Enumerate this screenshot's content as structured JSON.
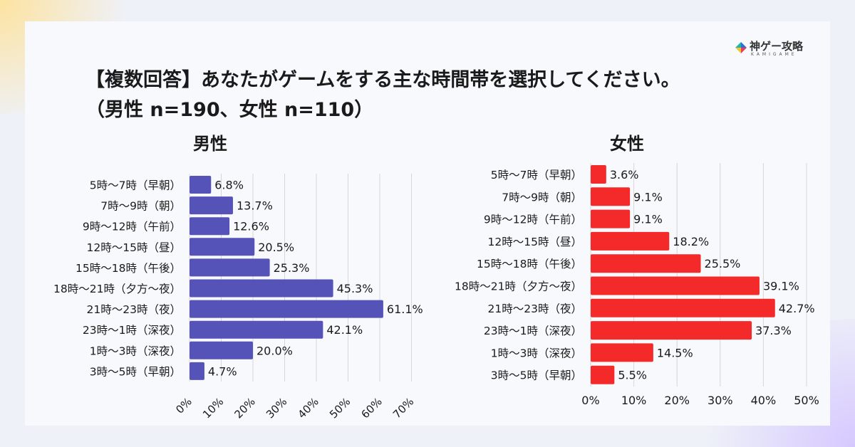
{
  "logo": {
    "text": "神ゲー攻略",
    "sub": "KAMIGAME"
  },
  "title": {
    "line1": "【複数回答】あなたがゲームをする主な時間帯を選択してください。",
    "line2": "（男性 n=190、女性 n=110）"
  },
  "chart_data": [
    {
      "type": "bar",
      "orientation": "horizontal",
      "title": "男性",
      "color": "#5553b8",
      "categories": [
        "5時〜7時（早朝）",
        "7時〜9時（朝）",
        "9時〜12時（午前）",
        "12時〜15時（昼）",
        "15時〜18時（午後）",
        "18時〜21時（夕方〜夜）",
        "21時〜23時（夜）",
        "23時〜1時（深夜）",
        "1時〜3時（深夜）",
        "3時〜5時（早朝）"
      ],
      "values": [
        6.8,
        13.7,
        12.6,
        20.5,
        25.3,
        45.3,
        61.1,
        42.1,
        20.0,
        4.7
      ],
      "labels": [
        "6.8%",
        "13.7%",
        "12.6%",
        "20.5%",
        "25.3%",
        "45.3%",
        "61.1%",
        "42.1%",
        "20.0%",
        "4.7%"
      ],
      "xlim": [
        0,
        70
      ],
      "ticks": [
        "0%",
        "10%",
        "20%",
        "30%",
        "40%",
        "50%",
        "60%",
        "70%"
      ],
      "tick_rotation": "rotated",
      "grid": true
    },
    {
      "type": "bar",
      "orientation": "horizontal",
      "title": "女性",
      "color": "#f42a2a",
      "categories": [
        "5時〜7時（早朝）",
        "7時〜9時（朝）",
        "9時〜12時（午前）",
        "12時〜15時（昼）",
        "15時〜18時（午後）",
        "18時〜21時（夕方〜夜）",
        "21時〜23時（夜）",
        "23時〜1時（深夜）",
        "1時〜3時（深夜）",
        "3時〜5時（早朝）"
      ],
      "values": [
        3.6,
        9.1,
        9.1,
        18.2,
        25.5,
        39.1,
        42.7,
        37.3,
        14.5,
        5.5
      ],
      "labels": [
        "3.6%",
        "9.1%",
        "9.1%",
        "18.2%",
        "25.5%",
        "39.1%",
        "42.7%",
        "37.3%",
        "14.5%",
        "5.5%"
      ],
      "xlim": [
        0,
        50
      ],
      "ticks": [
        "0%",
        "10%",
        "20%",
        "30%",
        "40%",
        "50%"
      ],
      "tick_rotation": "horizontal",
      "grid": true
    }
  ]
}
